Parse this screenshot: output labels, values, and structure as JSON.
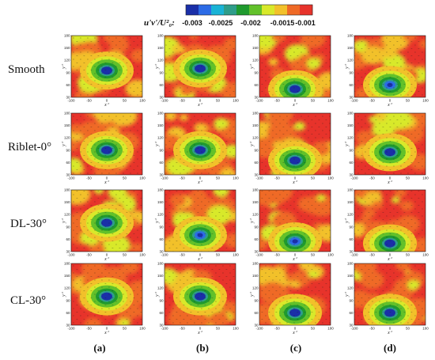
{
  "colorbar": {
    "title": "u'v'/U²₀:",
    "tick_labels": [
      "-0.003",
      "-0.0025",
      "-0.002",
      "-0.0015",
      "-0.001"
    ],
    "colors": [
      "#1a2fa8",
      "#2c6be6",
      "#19b3d6",
      "#2e9d8a",
      "#1f9a2e",
      "#62c12a",
      "#d8e92a",
      "#f2c12a",
      "#ef6a26",
      "#e7332b"
    ]
  },
  "row_labels": [
    "Smooth",
    "Riblet-0°",
    "DL-30°",
    "CL-30°"
  ],
  "column_labels": [
    "(a)",
    "(b)",
    "(c)",
    "(d)"
  ],
  "axes": {
    "x_label": "x⁺",
    "y_label": "y⁺",
    "x_ticks": [
      "-100",
      "-50",
      "0",
      "50",
      "100"
    ],
    "y_ticks": [
      "30",
      "60",
      "90",
      "120",
      "150",
      "180"
    ]
  },
  "chart_data": {
    "type": "heatmap",
    "xlim": [
      -100,
      100
    ],
    "ylim": [
      30,
      180
    ],
    "levels": [
      -0.003,
      -0.0025,
      -0.002,
      -0.0015,
      -0.001
    ],
    "panels": [
      {
        "row": "Smooth",
        "col": "(a)",
        "min_x": 0,
        "min_y": 95,
        "min_value": -0.003
      },
      {
        "row": "Smooth",
        "col": "(b)",
        "min_x": 0,
        "min_y": 100,
        "min_value": -0.003
      },
      {
        "row": "Smooth",
        "col": "(c)",
        "min_x": 0,
        "min_y": 50,
        "min_value": -0.003
      },
      {
        "row": "Smooth",
        "col": "(d)",
        "min_x": 0,
        "min_y": 60,
        "min_value": -0.0025
      },
      {
        "row": "Riblet-0°",
        "col": "(a)",
        "min_x": 0,
        "min_y": 90,
        "min_value": -0.003
      },
      {
        "row": "Riblet-0°",
        "col": "(b)",
        "min_x": 0,
        "min_y": 90,
        "min_value": -0.003
      },
      {
        "row": "Riblet-0°",
        "col": "(c)",
        "min_x": 0,
        "min_y": 65,
        "min_value": -0.003
      },
      {
        "row": "Riblet-0°",
        "col": "(d)",
        "min_x": 0,
        "min_y": 85,
        "min_value": -0.003
      },
      {
        "row": "DL-30°",
        "col": "(a)",
        "min_x": 0,
        "min_y": 100,
        "min_value": -0.003
      },
      {
        "row": "DL-30°",
        "col": "(b)",
        "min_x": 0,
        "min_y": 70,
        "min_value": -0.0025
      },
      {
        "row": "DL-30°",
        "col": "(c)",
        "min_x": 0,
        "min_y": 55,
        "min_value": -0.0025
      },
      {
        "row": "DL-30°",
        "col": "(d)",
        "min_x": 0,
        "min_y": 50,
        "min_value": -0.003
      },
      {
        "row": "CL-30°",
        "col": "(a)",
        "min_x": 0,
        "min_y": 100,
        "min_value": -0.003
      },
      {
        "row": "CL-30°",
        "col": "(b)",
        "min_x": 0,
        "min_y": 100,
        "min_value": -0.003
      },
      {
        "row": "CL-30°",
        "col": "(c)",
        "min_x": 0,
        "min_y": 60,
        "min_value": -0.003
      },
      {
        "row": "CL-30°",
        "col": "(d)",
        "min_x": 0,
        "min_y": 60,
        "min_value": -0.003
      }
    ]
  }
}
